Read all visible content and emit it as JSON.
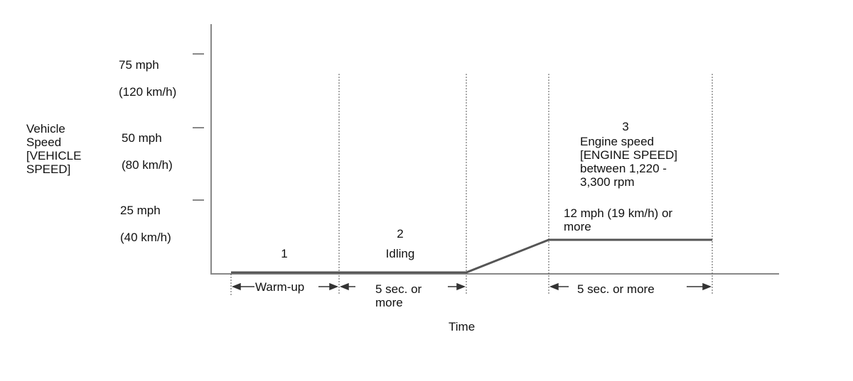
{
  "y_axis": {
    "label": "Vehicle\nSpeed\n[VEHICLE\nSPEED]",
    "ticks": [
      {
        "mph": "75 mph",
        "kmh": "(120 km/h)"
      },
      {
        "mph": "50 mph",
        "kmh": "(80 km/h)"
      },
      {
        "mph": "25 mph",
        "kmh": "(40 km/h)"
      }
    ]
  },
  "x_axis": {
    "label": "Time"
  },
  "phases": [
    {
      "number": "1",
      "label": ""
    },
    {
      "number": "2",
      "label": "Idling"
    },
    {
      "number": "3",
      "label": "Engine speed\n[ENGINE SPEED]\nbetween 1,220 -\n3,300 rpm"
    }
  ],
  "speed_annotation": "12 mph (19 km/h) or\nmore",
  "durations": {
    "warmup": "Warm-up",
    "idle": "5 sec. or\nmore",
    "drive": "5 sec. or more"
  },
  "colors": {
    "line": "#555555",
    "axis": "#888888",
    "text": "#111111"
  }
}
